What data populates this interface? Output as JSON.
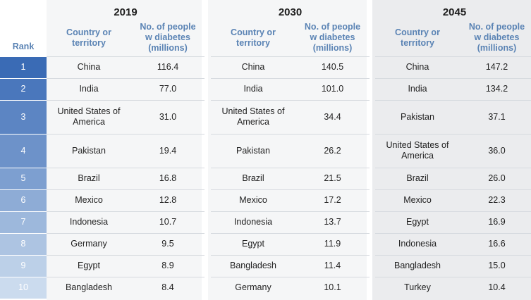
{
  "header": {
    "rank_label": "Rank",
    "years": [
      "2019",
      "2030",
      "2045"
    ],
    "country_label_line1": "Country or",
    "country_label_line2": "territory",
    "count_label_line1": "No. of people",
    "count_label_line2": "w diabetes",
    "count_label_line3": "(millions)"
  },
  "rank_colors": [
    "#3a6bb5",
    "#4a77bc",
    "#5c85c3",
    "#6d92c9",
    "#7d9fd0",
    "#8eacd6",
    "#9db8dc",
    "#adc4e2",
    "#bcd0e8",
    "#cbdbee"
  ],
  "rows": [
    {
      "rank": "1",
      "c2019": "China",
      "v2019": "116.4",
      "c2030": "China",
      "v2030": "140.5",
      "c2045": "China",
      "v2045": "147.2"
    },
    {
      "rank": "2",
      "c2019": "India",
      "v2019": "77.0",
      "c2030": "India",
      "v2030": "101.0",
      "c2045": "India",
      "v2045": "134.2"
    },
    {
      "rank": "3",
      "c2019": "United States of America",
      "v2019": "31.0",
      "c2030": "United States of America",
      "v2030": "34.4",
      "c2045": "Pakistan",
      "v2045": "37.1"
    },
    {
      "rank": "4",
      "c2019": "Pakistan",
      "v2019": "19.4",
      "c2030": "Pakistan",
      "v2030": "26.2",
      "c2045": "United States of America",
      "v2045": "36.0"
    },
    {
      "rank": "5",
      "c2019": "Brazil",
      "v2019": "16.8",
      "c2030": "Brazil",
      "v2030": "21.5",
      "c2045": "Brazil",
      "v2045": "26.0"
    },
    {
      "rank": "6",
      "c2019": "Mexico",
      "v2019": "12.8",
      "c2030": "Mexico",
      "v2030": "17.2",
      "c2045": "Mexico",
      "v2045": "22.3"
    },
    {
      "rank": "7",
      "c2019": "Indonesia",
      "v2019": "10.7",
      "c2030": "Indonesia",
      "v2030": "13.7",
      "c2045": "Egypt",
      "v2045": "16.9"
    },
    {
      "rank": "8",
      "c2019": "Germany",
      "v2019": "9.5",
      "c2030": "Egypt",
      "v2030": "11.9",
      "c2045": "Indonesia",
      "v2045": "16.6"
    },
    {
      "rank": "9",
      "c2019": "Egypt",
      "v2019": "8.9",
      "c2030": "Bangladesh",
      "v2030": "11.4",
      "c2045": "Bangladesh",
      "v2045": "15.0"
    },
    {
      "rank": "10",
      "c2019": "Bangladesh",
      "v2019": "8.4",
      "c2030": "Germany",
      "v2030": "10.1",
      "c2045": "Turkey",
      "v2045": "10.4"
    }
  ]
}
